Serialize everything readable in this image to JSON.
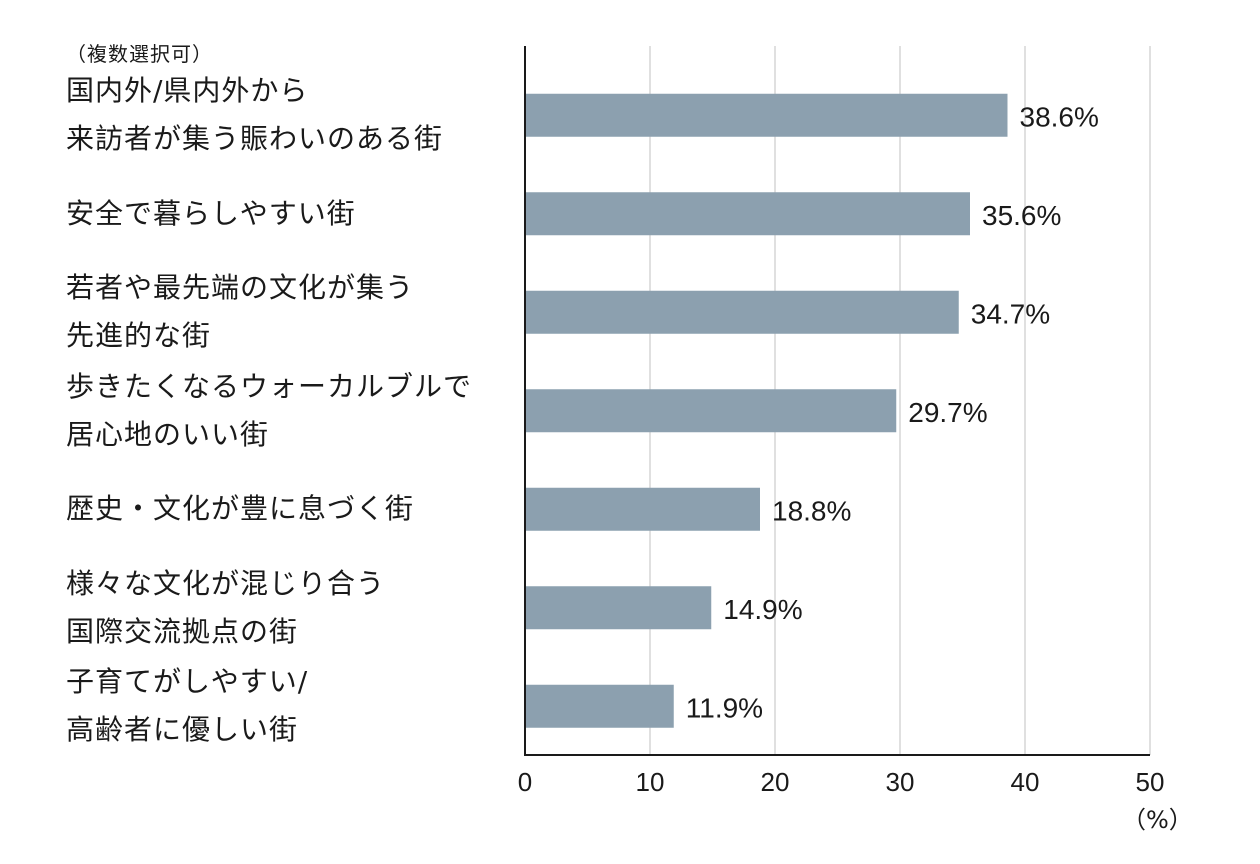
{
  "chart_data": {
    "type": "bar",
    "orientation": "horizontal",
    "note": "（複数選択可）",
    "unit_label": "（%）",
    "categories": [
      "国内外/県内外から\n来訪者が集う賑わいのある街",
      "安全で暮らしやすい街",
      "若者や最先端の文化が集う\n先進的な街",
      "歩きたくなるウォーカルブルで\n居心地のいい街",
      "歴史・文化が豊に息づく街",
      "様々な文化が混じり合う\n国際交流拠点の街",
      "子育てがしやすい/\n高齢者に優しい街"
    ],
    "values": [
      38.6,
      35.6,
      34.7,
      29.7,
      18.8,
      14.9,
      11.9
    ],
    "value_labels": [
      "38.6%",
      "35.6%",
      "34.7%",
      "29.7%",
      "18.8%",
      "14.9%",
      "11.9%"
    ],
    "xlim": [
      0,
      50
    ],
    "xticks": [
      0,
      10,
      20,
      30,
      40,
      50
    ],
    "xtick_labels": [
      "0",
      "10",
      "20",
      "30",
      "40",
      "50"
    ],
    "grid": true,
    "bar_color": "#8ca0af",
    "grid_color": "#d6d6d6",
    "axis_color": "#1a1a1a"
  }
}
